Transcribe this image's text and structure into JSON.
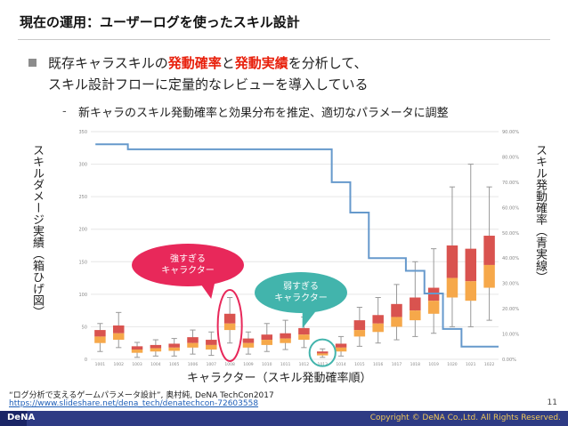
{
  "slide": {
    "title": "現在の運用：ユーザーログを使ったスキル設計",
    "bullet": {
      "part1": "既存キャラスキルの",
      "highlight1": "発動確率",
      "part2": "と",
      "highlight2": "発動実績",
      "part3": "を分析して、",
      "line2": "スキル設計フローに定量的なレビューを導入している"
    },
    "sub_bullet_dash": "-",
    "sub_bullet": "新キャラのスキル発動確率と効果分布を推定、適切なパラメータに調整",
    "left_axis_label": "スキルダメージ実績（箱ひげ図）",
    "right_axis_label": "スキル発動確率（青実線）",
    "x_axis_label": "キャラクター（スキル発動確率順）",
    "callout_strong": "強すぎる\nキャラクター",
    "callout_weak": "弱すぎる\nキャラクター",
    "source_line1": "“ログ分析で支えるゲームパラメータ設計”, 奥村純, DeNA TechCon2017",
    "source_link": "https://www.slideshare.net/dena_tech/denatechcon-72603558",
    "page_number": "11",
    "logo": "DeNA",
    "copyright": "Copyright © DeNA Co.,Ltd. All Rights Reserved.",
    "colors": {
      "highlight": "#e8200c",
      "box_upper": "#d9534f",
      "box_lower": "#f6a84a",
      "line": "#6699cc",
      "callout_strong": "#e8285a",
      "callout_weak": "#42b4ac",
      "footer": "#2e3b84"
    }
  },
  "chart_data": {
    "type": "box",
    "categories": [
      "1001",
      "1002",
      "1003",
      "1004",
      "1005",
      "1006",
      "1007",
      "1008",
      "1009",
      "1010",
      "1011",
      "1012",
      "1013",
      "1014",
      "1015",
      "1016",
      "1017",
      "1018",
      "1019",
      "1020",
      "1021",
      "1022"
    ],
    "y_left_ticks": [
      "0",
      "50",
      "100",
      "150",
      "200",
      "250",
      "300",
      "350"
    ],
    "y_right_ticks": [
      "0.00%",
      "10.00%",
      "20.00%",
      "30.00%",
      "40.00%",
      "50.00%",
      "60.00%",
      "70.00%",
      "80.00%",
      "90.00%"
    ],
    "y_left_range": [
      0,
      350
    ],
    "y_right_range": [
      0,
      90
    ],
    "boxes": [
      {
        "min": 12,
        "q1": 25,
        "median": 35,
        "q3": 45,
        "max": 55
      },
      {
        "min": 18,
        "q1": 30,
        "median": 40,
        "q3": 52,
        "max": 72
      },
      {
        "min": 3,
        "q1": 10,
        "median": 15,
        "q3": 20,
        "max": 26
      },
      {
        "min": 5,
        "q1": 12,
        "median": 17,
        "q3": 22,
        "max": 30
      },
      {
        "min": 5,
        "q1": 13,
        "median": 18,
        "q3": 24,
        "max": 32
      },
      {
        "min": 8,
        "q1": 18,
        "median": 25,
        "q3": 34,
        "max": 45
      },
      {
        "min": 6,
        "q1": 15,
        "median": 22,
        "q3": 30,
        "max": 42
      },
      {
        "min": 25,
        "q1": 45,
        "median": 55,
        "q3": 70,
        "max": 95
      },
      {
        "min": 8,
        "q1": 18,
        "median": 25,
        "q3": 32,
        "max": 42
      },
      {
        "min": 12,
        "q1": 22,
        "median": 30,
        "q3": 38,
        "max": 55
      },
      {
        "min": 15,
        "q1": 25,
        "median": 32,
        "q3": 40,
        "max": 60
      },
      {
        "min": 18,
        "q1": 30,
        "median": 38,
        "q3": 48,
        "max": 65
      },
      {
        "min": 3,
        "q1": 6,
        "median": 9,
        "q3": 12,
        "max": 16
      },
      {
        "min": 5,
        "q1": 12,
        "median": 18,
        "q3": 24,
        "max": 35
      },
      {
        "min": 20,
        "q1": 35,
        "median": 45,
        "q3": 60,
        "max": 80
      },
      {
        "min": 25,
        "q1": 42,
        "median": 55,
        "q3": 68,
        "max": 95
      },
      {
        "min": 30,
        "q1": 50,
        "median": 65,
        "q3": 85,
        "max": 115
      },
      {
        "min": 35,
        "q1": 60,
        "median": 75,
        "q3": 95,
        "max": 150
      },
      {
        "min": 40,
        "q1": 70,
        "median": 90,
        "q3": 110,
        "max": 170
      },
      {
        "min": 50,
        "q1": 95,
        "median": 125,
        "q3": 175,
        "max": 265
      },
      {
        "min": 50,
        "q1": 90,
        "median": 120,
        "q3": 170,
        "max": 300
      },
      {
        "min": 60,
        "q1": 110,
        "median": 145,
        "q3": 190,
        "max": 265
      }
    ],
    "probability_line": [
      85,
      85,
      83,
      83,
      83,
      83,
      83,
      83,
      83,
      83,
      83,
      83,
      83,
      70,
      58,
      40,
      40,
      35,
      26,
      12,
      5,
      5
    ]
  }
}
